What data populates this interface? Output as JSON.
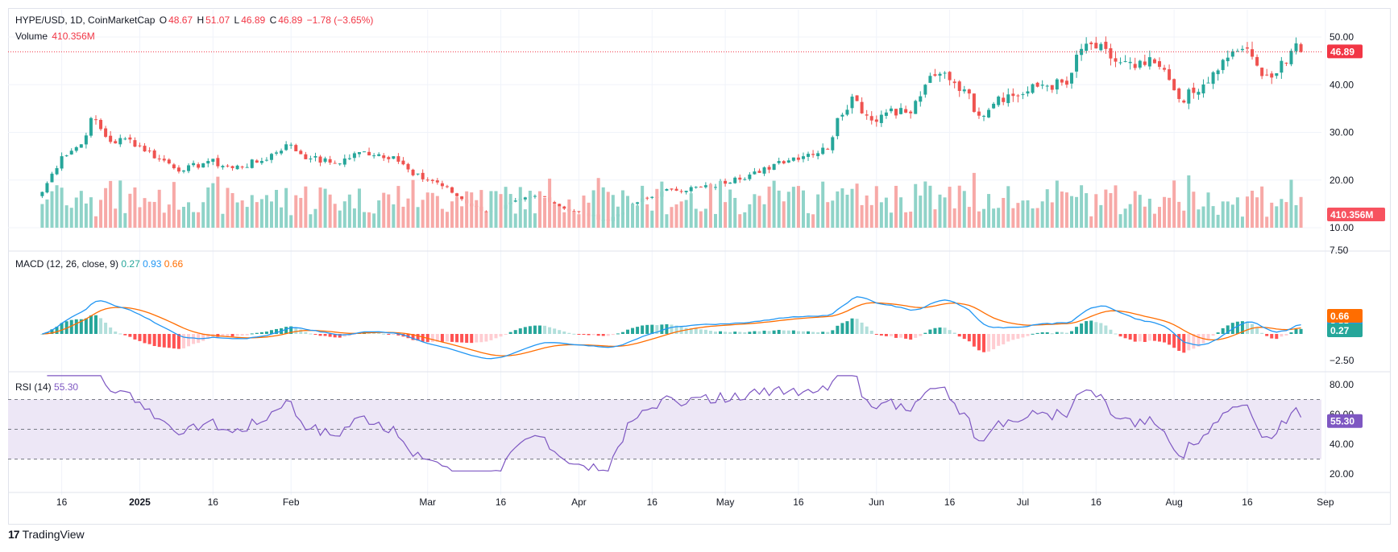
{
  "header": {
    "symbol": "HYPE/USD, 1D, CoinMarketCap",
    "open_label": "O",
    "open": "48.67",
    "high_label": "H",
    "high": "51.07",
    "low_label": "L",
    "low": "46.89",
    "close_label": "C",
    "close": "46.89",
    "change": "−1.78 (−3.65%)",
    "volume_label": "Volume",
    "volume": "410.356M"
  },
  "macd_legend": {
    "label": "MACD (12, 26, close, 9)",
    "hist": "0.27",
    "macd": "0.93",
    "signal": "0.66"
  },
  "rsi_legend": {
    "label": "RSI (14)",
    "value": "55.30"
  },
  "branding": {
    "name": "TradingView"
  },
  "colors": {
    "up": "#26a69a",
    "down": "#ef5350",
    "vol_up": "#8fd3c8",
    "vol_down": "#f7a9a7",
    "macd": "#2196f3",
    "signal": "#ff6d00",
    "rsi": "#7e57c2",
    "rsi_band": "#ede7f6"
  },
  "chart_data": [
    {
      "type": "candlestick",
      "title": "HYPE/USD, 1D, CoinMarketCap",
      "y_axis_ticks": [
        "50.00",
        "40.00",
        "30.00",
        "20.00",
        "10.00",
        "7.50"
      ],
      "ylim": [
        7.5,
        52
      ],
      "x_axis_ticks": [
        "16",
        "2025",
        "16",
        "Feb",
        "Mar",
        "16",
        "Apr",
        "16",
        "May",
        "16",
        "Jun",
        "16",
        "Jul",
        "16",
        "Aug",
        "16",
        "Sep"
      ],
      "last_price": 46.89,
      "last_price_label": "46.89",
      "last_volume_label": "410.356M",
      "close_anchors": [
        [
          "2024-12-12",
          17.5
        ],
        [
          "2024-12-16",
          25.0
        ],
        [
          "2024-12-20",
          27.5
        ],
        [
          "2024-12-22",
          33.0
        ],
        [
          "2024-12-26",
          28.0
        ],
        [
          "2024-12-30",
          28.5
        ],
        [
          "2025-01-05",
          24.5
        ],
        [
          "2025-01-10",
          22.0
        ],
        [
          "2025-01-15",
          24.0
        ],
        [
          "2025-01-20",
          22.5
        ],
        [
          "2025-01-26",
          24.0
        ],
        [
          "2025-01-31",
          27.5
        ],
        [
          "2025-02-05",
          24.5
        ],
        [
          "2025-02-10",
          23.5
        ],
        [
          "2025-02-16",
          26.0
        ],
        [
          "2025-02-22",
          25.0
        ],
        [
          "2025-02-26",
          21.0
        ],
        [
          "2025-03-03",
          19.5
        ],
        [
          "2025-03-08",
          16.0
        ],
        [
          "2025-03-12",
          13.5
        ],
        [
          "2025-03-16",
          14.0
        ],
        [
          "2025-03-22",
          16.5
        ],
        [
          "2025-03-25",
          16.5
        ],
        [
          "2025-03-29",
          14.0
        ],
        [
          "2025-04-07",
          11.5
        ],
        [
          "2025-04-12",
          15.0
        ],
        [
          "2025-04-20",
          18.0
        ],
        [
          "2025-04-28",
          18.5
        ],
        [
          "2025-05-03",
          20.5
        ],
        [
          "2025-05-08",
          21.5
        ],
        [
          "2025-05-12",
          24.0
        ],
        [
          "2025-05-18",
          25.5
        ],
        [
          "2025-05-22",
          26.5
        ],
        [
          "2025-05-24",
          33.0
        ],
        [
          "2025-05-27",
          37.5
        ],
        [
          "2025-05-31",
          32.5
        ],
        [
          "2025-06-04",
          35.0
        ],
        [
          "2025-06-08",
          34.0
        ],
        [
          "2025-06-11",
          40.0
        ],
        [
          "2025-06-15",
          42.5
        ],
        [
          "2025-06-19",
          39.0
        ],
        [
          "2025-06-22",
          33.5
        ],
        [
          "2025-06-26",
          37.5
        ],
        [
          "2025-07-01",
          38.0
        ],
        [
          "2025-07-05",
          40.0
        ],
        [
          "2025-07-10",
          40.0
        ],
        [
          "2025-07-13",
          47.5
        ],
        [
          "2025-07-15",
          48.5
        ],
        [
          "2025-07-19",
          45.5
        ],
        [
          "2025-07-24",
          43.5
        ],
        [
          "2025-07-28",
          44.5
        ],
        [
          "2025-07-31",
          41.0
        ],
        [
          "2025-08-02",
          37.0
        ],
        [
          "2025-08-06",
          38.5
        ],
        [
          "2025-08-10",
          43.0
        ],
        [
          "2025-08-13",
          47.0
        ],
        [
          "2025-08-15",
          47.5
        ],
        [
          "2025-08-18",
          44.0
        ],
        [
          "2025-08-21",
          41.5
        ],
        [
          "2025-08-24",
          44.5
        ],
        [
          "2025-08-26",
          48.67
        ],
        [
          "2025-08-27",
          46.89
        ]
      ]
    },
    {
      "type": "line",
      "title": "MACD (12, 26, close, 9)",
      "y_axis_ticks": [
        "−2.50"
      ],
      "series": [
        {
          "name": "MACD",
          "value": 0.93,
          "values_label": "0.93"
        },
        {
          "name": "Signal",
          "value": 0.66,
          "values_label": "0.66"
        },
        {
          "name": "Histogram",
          "value": 0.27,
          "values_label": "0.27"
        }
      ]
    },
    {
      "type": "line",
      "title": "RSI (14)",
      "y_axis_ticks": [
        "80.00",
        "60.00",
        "40.00",
        "20.00"
      ],
      "bands": [
        30,
        50,
        70
      ],
      "last_value": 55.3,
      "last_value_label": "55.30"
    }
  ]
}
